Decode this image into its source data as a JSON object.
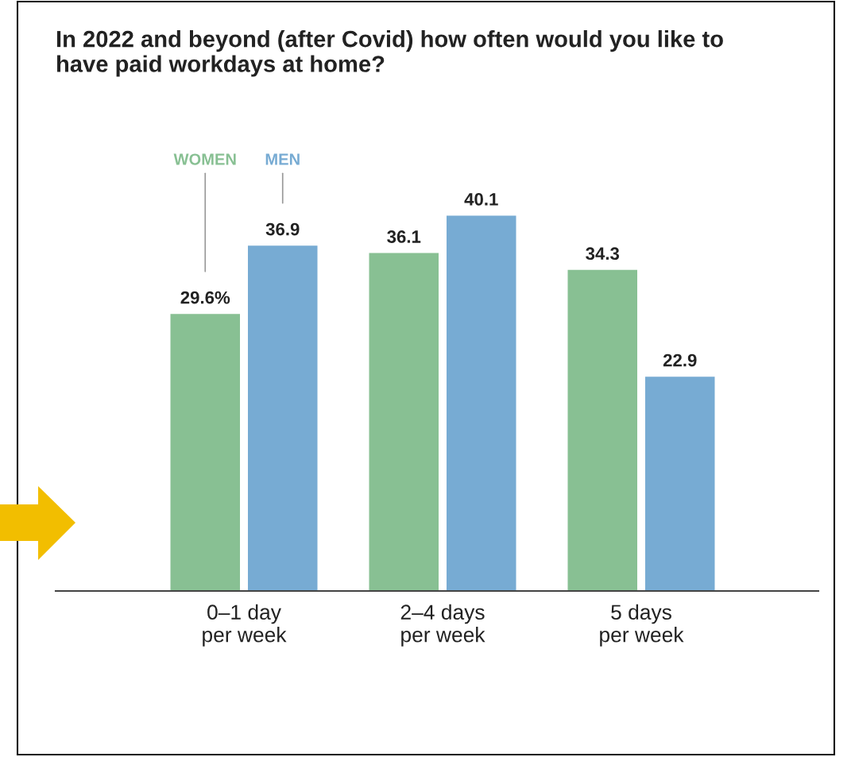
{
  "chart_data": {
    "type": "bar",
    "title": "In 2022 and beyond (after Covid) how often would you like to\nhave paid workdays at home?",
    "categories": [
      "0–1 day\nper week",
      "2–4 days\nper week",
      "5 days\nper week"
    ],
    "series": [
      {
        "name": "WOMEN",
        "color": "#88c093",
        "values": [
          29.6,
          36.1,
          34.3
        ],
        "value_labels": [
          "29.6%",
          "36.1",
          "34.3"
        ]
      },
      {
        "name": "MEN",
        "color": "#77abd3",
        "values": [
          36.9,
          40.1,
          22.9
        ],
        "value_labels": [
          "36.9",
          "40.1",
          "22.9"
        ]
      }
    ],
    "grid": false
  }
}
